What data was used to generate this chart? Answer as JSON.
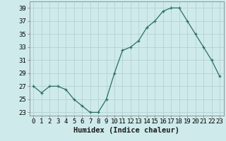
{
  "x": [
    0,
    1,
    2,
    3,
    4,
    5,
    6,
    7,
    8,
    9,
    10,
    11,
    12,
    13,
    14,
    15,
    16,
    17,
    18,
    19,
    20,
    21,
    22,
    23
  ],
  "y": [
    27,
    26,
    27,
    27,
    26.5,
    25,
    24,
    23,
    23,
    25,
    29,
    32.5,
    33,
    34,
    36,
    37,
    38.5,
    39,
    39,
    37,
    35,
    33,
    31,
    28.5
  ],
  "xlabel": "Humidex (Indice chaleur)",
  "ylim": [
    22.5,
    40
  ],
  "yticks": [
    23,
    25,
    27,
    29,
    31,
    33,
    35,
    37,
    39
  ],
  "xlim": [
    -0.5,
    23.5
  ],
  "line_color": "#2a7060",
  "marker": "+",
  "bg_color": "#ceeaea",
  "grid_color": "#b0cccc",
  "label_fontsize": 7.5,
  "tick_fontsize": 6.5
}
